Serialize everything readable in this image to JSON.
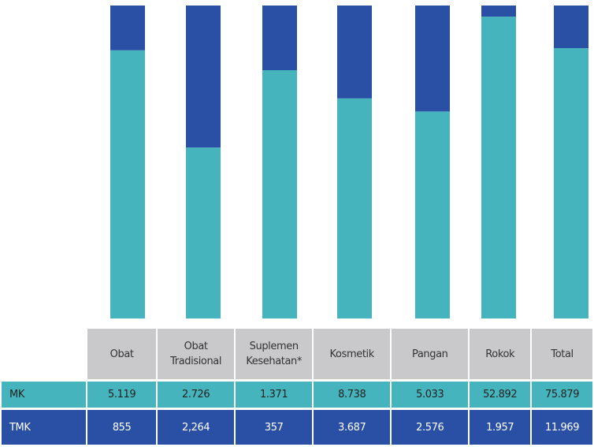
{
  "chart_data": {
    "type": "bar",
    "stacked": "percent",
    "categories": [
      "Obat",
      "Obat Tradisional",
      "Suplemen Kesehatan*",
      "Kosmetik",
      "Pangan",
      "Rokok",
      "Total"
    ],
    "series": [
      {
        "name": "MK",
        "color": "#45b4bd",
        "values": [
          5119,
          2726,
          1371,
          8738,
          5033,
          52892,
          75879
        ],
        "value_labels": [
          "5.119",
          "2.726",
          "1.371",
          "8.738",
          "5.033",
          "52.892",
          "75.879"
        ]
      },
      {
        "name": "TMK",
        "color": "#2a50a6",
        "values": [
          855,
          2264,
          357,
          3687,
          2576,
          1957,
          11969
        ],
        "value_labels": [
          "855",
          "2,264",
          "357",
          "3.687",
          "2.576",
          "1.957",
          "11.969"
        ]
      }
    ]
  }
}
